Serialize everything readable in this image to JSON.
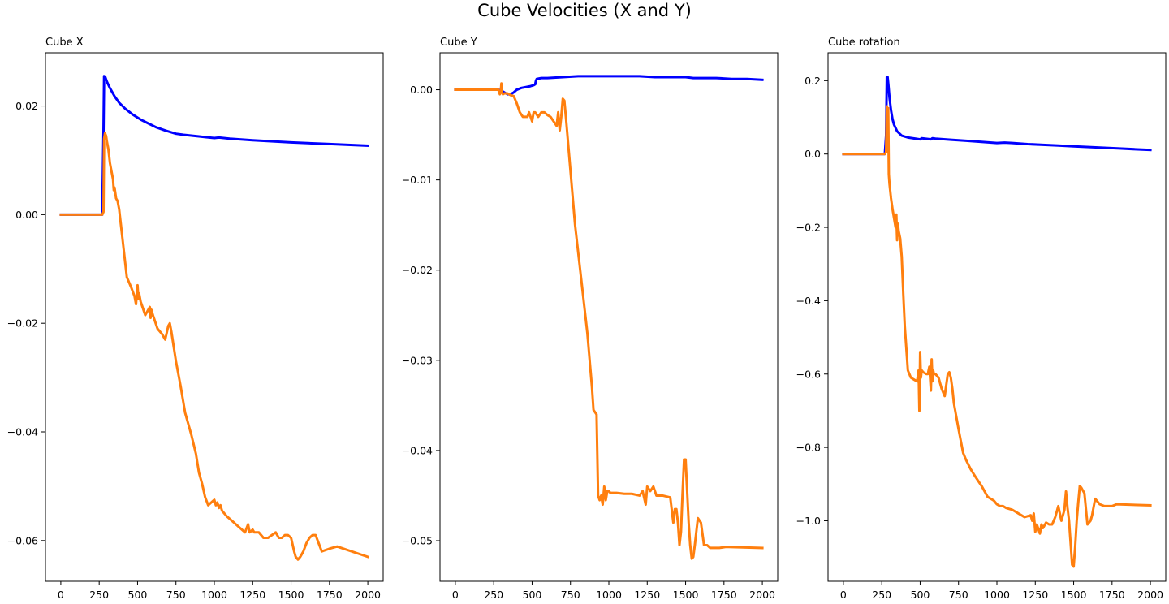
{
  "suptitle": "Cube Velocities (X and Y)",
  "colors": {
    "series_blue": "#0000ff",
    "series_orange": "#ff7f0e"
  },
  "chart_data": [
    {
      "type": "line",
      "title": "Cube X",
      "xlim": [
        -100,
        2100
      ],
      "ylim": [
        -0.0675,
        0.0298
      ],
      "xticks": [
        0,
        250,
        500,
        750,
        1000,
        1250,
        1500,
        1750,
        2000
      ],
      "xtick_labels": [
        "0",
        "250",
        "500",
        "750",
        "1000",
        "1250",
        "1500",
        "1750",
        "2000"
      ],
      "yticks": [
        -0.06,
        -0.04,
        -0.02,
        0.0,
        0.02
      ],
      "ytick_labels": [
        "−0.06",
        "−0.04",
        "−0.02",
        "0.00",
        "0.02"
      ],
      "series": [
        {
          "color": "#0000ff",
          "x": [
            0,
            270,
            278,
            282,
            290,
            300,
            320,
            350,
            380,
            420,
            470,
            520,
            570,
            620,
            680,
            750,
            800,
            900,
            1000,
            1030,
            1100,
            1250,
            1500,
            1750,
            2000
          ],
          "y": [
            0,
            0,
            0.015,
            0.0255,
            0.0253,
            0.0245,
            0.0233,
            0.0218,
            0.0206,
            0.0195,
            0.0184,
            0.0175,
            0.0168,
            0.0161,
            0.0155,
            0.0149,
            0.0147,
            0.0144,
            0.0141,
            0.0142,
            0.014,
            0.0137,
            0.0133,
            0.013,
            0.0127
          ]
        },
        {
          "color": "#ff7f0e",
          "x": [
            0,
            270,
            278,
            282,
            288,
            295,
            300,
            310,
            320,
            330,
            340,
            345,
            350,
            360,
            370,
            380,
            400,
            430,
            460,
            480,
            490,
            500,
            505,
            510,
            520,
            550,
            580,
            585,
            590,
            600,
            630,
            660,
            680,
            700,
            710,
            720,
            750,
            780,
            810,
            850,
            880,
            900,
            920,
            940,
            960,
            980,
            1000,
            1010,
            1020,
            1030,
            1040,
            1050,
            1080,
            1120,
            1160,
            1200,
            1220,
            1230,
            1250,
            1260,
            1290,
            1320,
            1350,
            1400,
            1420,
            1440,
            1460,
            1480,
            1500,
            1520,
            1530,
            1545,
            1560,
            1580,
            1600,
            1620,
            1640,
            1660,
            1680,
            1700,
            1750,
            1800,
            2000
          ],
          "y": [
            0,
            0,
            0.0005,
            0.014,
            0.015,
            0.0145,
            0.0135,
            0.012,
            0.0095,
            0.008,
            0.0065,
            0.0045,
            0.005,
            0.003,
            0.0025,
            0.001,
            -0.004,
            -0.0115,
            -0.0135,
            -0.015,
            -0.0165,
            -0.013,
            -0.0155,
            -0.0145,
            -0.016,
            -0.0185,
            -0.017,
            -0.019,
            -0.0175,
            -0.0185,
            -0.021,
            -0.022,
            -0.023,
            -0.0205,
            -0.02,
            -0.0215,
            -0.027,
            -0.0315,
            -0.0365,
            -0.0405,
            -0.044,
            -0.0475,
            -0.0495,
            -0.052,
            -0.0535,
            -0.053,
            -0.0525,
            -0.0535,
            -0.053,
            -0.054,
            -0.0535,
            -0.0545,
            -0.0555,
            -0.0565,
            -0.0575,
            -0.0585,
            -0.057,
            -0.0585,
            -0.058,
            -0.0585,
            -0.0585,
            -0.0595,
            -0.0595,
            -0.0585,
            -0.0595,
            -0.0595,
            -0.059,
            -0.059,
            -0.0595,
            -0.062,
            -0.063,
            -0.0635,
            -0.063,
            -0.062,
            -0.0605,
            -0.0595,
            -0.059,
            -0.059,
            -0.0605,
            -0.062,
            -0.0615,
            -0.0611,
            -0.063
          ]
        }
      ]
    },
    {
      "type": "line",
      "title": "Cube Y",
      "xlim": [
        -100,
        2100
      ],
      "ylim": [
        -0.0545,
        0.0041
      ],
      "xticks": [
        0,
        250,
        500,
        750,
        1000,
        1250,
        1500,
        1750,
        2000
      ],
      "xtick_labels": [
        "0",
        "250",
        "500",
        "750",
        "1000",
        "1250",
        "1500",
        "1750",
        "2000"
      ],
      "yticks": [
        -0.05,
        -0.04,
        -0.03,
        -0.02,
        -0.01,
        0.0
      ],
      "ytick_labels": [
        "−0.05",
        "−0.04",
        "−0.03",
        "−0.02",
        "−0.01",
        "0.00"
      ],
      "series": [
        {
          "color": "#0000ff",
          "x": [
            0,
            280,
            300,
            320,
            340,
            360,
            380,
            400,
            430,
            460,
            490,
            510,
            520,
            525,
            530,
            560,
            600,
            700,
            800,
            900,
            950,
            1000,
            1100,
            1200,
            1300,
            1400,
            1500,
            1550,
            1600,
            1700,
            1800,
            1900,
            2000
          ],
          "y": [
            0,
            0,
            -0.0001,
            -0.0003,
            -0.0005,
            -0.0005,
            -0.0003,
            0,
            0.0002,
            0.0003,
            0.0004,
            0.0005,
            0.0006,
            0.001,
            0.0012,
            0.0013,
            0.0013,
            0.0014,
            0.0015,
            0.0015,
            0.0015,
            0.0015,
            0.0015,
            0.0015,
            0.0014,
            0.0014,
            0.0014,
            0.0013,
            0.0013,
            0.0013,
            0.0012,
            0.0012,
            0.0011
          ]
        },
        {
          "color": "#ff7f0e",
          "x": [
            0,
            280,
            290,
            295,
            300,
            305,
            310,
            320,
            340,
            360,
            380,
            400,
            420,
            440,
            460,
            470,
            480,
            500,
            510,
            520,
            540,
            560,
            580,
            600,
            620,
            640,
            660,
            670,
            680,
            690,
            700,
            710,
            720,
            740,
            760,
            780,
            800,
            820,
            840,
            860,
            880,
            890,
            900,
            920,
            930,
            940,
            950,
            960,
            970,
            980,
            990,
            1000,
            1010,
            1030,
            1050,
            1100,
            1150,
            1200,
            1220,
            1240,
            1250,
            1270,
            1290,
            1300,
            1310,
            1330,
            1350,
            1400,
            1420,
            1430,
            1440,
            1450,
            1460,
            1470,
            1480,
            1490,
            1500,
            1510,
            1520,
            1530,
            1540,
            1550,
            1560,
            1580,
            1600,
            1620,
            1640,
            1660,
            1670,
            1690,
            1720,
            1760,
            1780,
            2000
          ],
          "y": [
            0,
            0,
            -0.0005,
            -0.0003,
            0.0007,
            -0.0003,
            -0.0005,
            -0.0004,
            -0.0004,
            -0.0006,
            -0.0007,
            -0.0015,
            -0.0025,
            -0.003,
            -0.003,
            -0.003,
            -0.0025,
            -0.0035,
            -0.0025,
            -0.0025,
            -0.003,
            -0.0025,
            -0.0025,
            -0.0028,
            -0.003,
            -0.0035,
            -0.004,
            -0.0025,
            -0.0045,
            -0.003,
            -0.001,
            -0.0012,
            -0.003,
            -0.007,
            -0.011,
            -0.015,
            -0.018,
            -0.021,
            -0.024,
            -0.027,
            -0.031,
            -0.033,
            -0.0355,
            -0.036,
            -0.045,
            -0.0455,
            -0.045,
            -0.046,
            -0.044,
            -0.0455,
            -0.0445,
            -0.0445,
            -0.0447,
            -0.0447,
            -0.0447,
            -0.0448,
            -0.0448,
            -0.045,
            -0.0445,
            -0.046,
            -0.044,
            -0.0445,
            -0.044,
            -0.0445,
            -0.045,
            -0.045,
            -0.045,
            -0.0452,
            -0.048,
            -0.0465,
            -0.0465,
            -0.048,
            -0.0505,
            -0.049,
            -0.0448,
            -0.041,
            -0.041,
            -0.0445,
            -0.048,
            -0.0505,
            -0.052,
            -0.0518,
            -0.0505,
            -0.0475,
            -0.048,
            -0.0505,
            -0.0505,
            -0.0508,
            -0.0508,
            -0.0508,
            -0.0508,
            -0.0507,
            -0.0507,
            -0.0508
          ]
        }
      ]
    },
    {
      "type": "line",
      "title": "Cube rotation",
      "xlim": [
        -100,
        2100
      ],
      "ylim": [
        -1.165,
        0.276
      ],
      "xticks": [
        0,
        250,
        500,
        750,
        1000,
        1250,
        1500,
        1750,
        2000
      ],
      "xtick_labels": [
        "0",
        "250",
        "500",
        "750",
        "1000",
        "1250",
        "1500",
        "1750",
        "2000"
      ],
      "yticks": [
        -1.0,
        -0.8,
        -0.6,
        -0.4,
        -0.2,
        0.0,
        0.2
      ],
      "ytick_labels": [
        "−1.0",
        "−0.8",
        "−0.6",
        "−0.4",
        "−0.2",
        "0.0",
        "0.2"
      ],
      "series": [
        {
          "color": "#0000ff",
          "x": [
            0,
            270,
            278,
            283,
            288,
            293,
            300,
            310,
            320,
            330,
            350,
            380,
            420,
            470,
            500,
            510,
            550,
            570,
            580,
            600,
            700,
            800,
            900,
            1000,
            1050,
            1100,
            1200,
            1300,
            1400,
            1500,
            1600,
            1700,
            1800,
            1900,
            2000
          ],
          "y": [
            0,
            0,
            0.05,
            0.21,
            0.21,
            0.19,
            0.155,
            0.12,
            0.095,
            0.08,
            0.062,
            0.05,
            0.045,
            0.042,
            0.04,
            0.043,
            0.041,
            0.04,
            0.043,
            0.042,
            0.039,
            0.036,
            0.033,
            0.03,
            0.031,
            0.03,
            0.027,
            0.025,
            0.023,
            0.021,
            0.019,
            0.017,
            0.015,
            0.013,
            0.011
          ]
        },
        {
          "color": "#ff7f0e",
          "x": [
            0,
            270,
            278,
            283,
            288,
            292,
            296,
            300,
            305,
            310,
            320,
            330,
            340,
            345,
            350,
            355,
            360,
            370,
            380,
            390,
            400,
            420,
            440,
            460,
            480,
            490,
            495,
            500,
            505,
            510,
            520,
            540,
            550,
            560,
            570,
            575,
            580,
            585,
            590,
            600,
            620,
            640,
            660,
            680,
            690,
            700,
            710,
            720,
            750,
            780,
            800,
            830,
            860,
            900,
            940,
            980,
            1000,
            1020,
            1040,
            1060,
            1100,
            1140,
            1180,
            1220,
            1230,
            1240,
            1250,
            1260,
            1280,
            1290,
            1300,
            1320,
            1340,
            1360,
            1380,
            1400,
            1420,
            1430,
            1440,
            1450,
            1460,
            1470,
            1480,
            1490,
            1500,
            1510,
            1520,
            1530,
            1540,
            1550,
            1570,
            1590,
            1610,
            1620,
            1640,
            1650,
            1670,
            1700,
            1750,
            1780,
            2000
          ],
          "y": [
            0,
            0,
            0.005,
            0.13,
            0.005,
            0.125,
            -0.055,
            -0.08,
            -0.1,
            -0.12,
            -0.15,
            -0.175,
            -0.2,
            -0.165,
            -0.235,
            -0.19,
            -0.21,
            -0.23,
            -0.28,
            -0.38,
            -0.47,
            -0.59,
            -0.61,
            -0.615,
            -0.62,
            -0.59,
            -0.7,
            -0.54,
            -0.61,
            -0.59,
            -0.595,
            -0.6,
            -0.6,
            -0.58,
            -0.645,
            -0.56,
            -0.62,
            -0.59,
            -0.6,
            -0.6,
            -0.61,
            -0.64,
            -0.66,
            -0.6,
            -0.595,
            -0.61,
            -0.64,
            -0.68,
            -0.75,
            -0.815,
            -0.835,
            -0.86,
            -0.88,
            -0.905,
            -0.935,
            -0.945,
            -0.955,
            -0.96,
            -0.96,
            -0.965,
            -0.97,
            -0.98,
            -0.99,
            -0.985,
            -1.0,
            -0.98,
            -1.03,
            -1.01,
            -1.035,
            -1.01,
            -1.02,
            -1.005,
            -1.01,
            -1.01,
            -0.99,
            -0.96,
            -1.0,
            -0.985,
            -0.97,
            -0.92,
            -0.965,
            -1.0,
            -1.06,
            -1.12,
            -1.125,
            -1.07,
            -1.0,
            -0.95,
            -0.905,
            -0.91,
            -0.925,
            -1.01,
            -1.0,
            -0.985,
            -0.94,
            -0.945,
            -0.955,
            -0.96,
            -0.96,
            -0.955,
            -0.958
          ]
        }
      ]
    }
  ]
}
